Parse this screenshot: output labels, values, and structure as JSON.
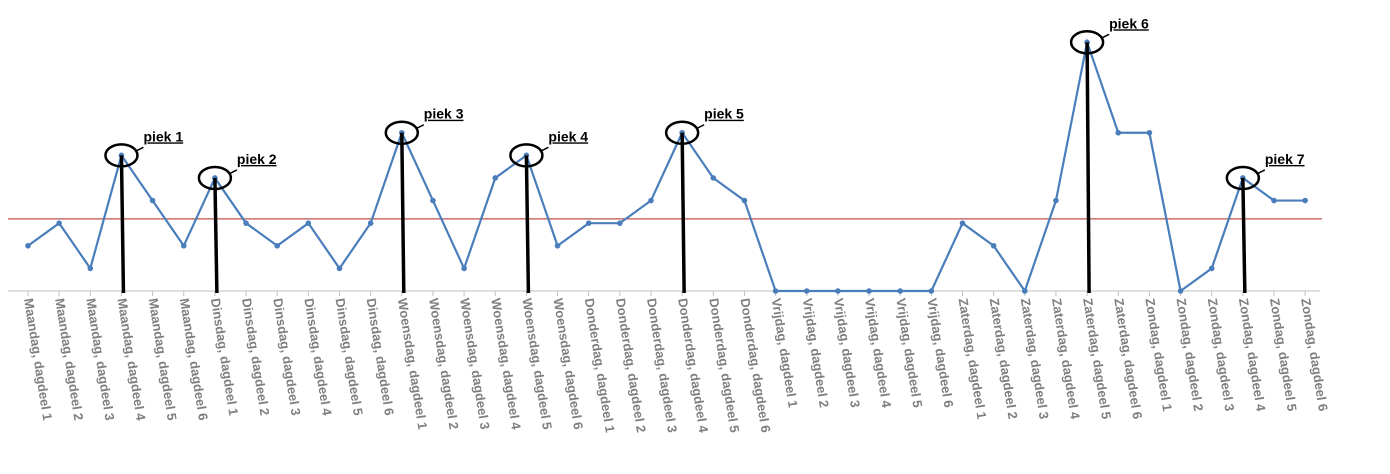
{
  "chart_data": {
    "type": "line",
    "categories": [
      "Maandag, dagdeel 1",
      "Maandag, dagdeel 2",
      "Maandag, dagdeel 3",
      "Maandag, dagdeel 4",
      "Maandag, dagdeel 5",
      "Maandag, dagdeel 6",
      "Dinsdag, dagdeel 1",
      "Dinsdag, dagdeel 2",
      "Dinsdag, dagdeel 3",
      "Dinsdag, dagdeel 4",
      "Dinsdag, dagdeel 5",
      "Dinsdag, dagdeel 6",
      "Woensdag, dagdeel 1",
      "Woensdag, dagdeel 2",
      "Woensdag, dagdeel 3",
      "Woensdag, dagdeel 4",
      "Woensdag, dagdeel 5",
      "Woensdag, dagdeel 6",
      "Donderdag, dagdeel 1",
      "Donderdag, dagdeel 2",
      "Donderdag, dagdeel 3",
      "Donderdag, dagdeel 4",
      "Donderdag, dagdeel 5",
      "Donderdag, dagdeel 6",
      "Vrijdag, dagdeel 1",
      "Vrijdag, dagdeel 2",
      "Vrijdag, dagdeel 3",
      "Vrijdag, dagdeel 4",
      "Vrijdag, dagdeel 5",
      "Vrijdag, dagdeel 6",
      "Zaterdag, dagdeel 1",
      "Zaterdag, dagdeel 2",
      "Zaterdag, dagdeel 3",
      "Zaterdag, dagdeel 4",
      "Zaterdag, dagdeel 5",
      "Zaterdag, dagdeel 6",
      "Zondag, dagdeel 1",
      "Zondag, dagdeel 2",
      "Zondag, dagdeel 3",
      "Zondag, dagdeel 4",
      "Zondag, dagdeel 5",
      "Zondag, dagdeel 6"
    ],
    "values": [
      2,
      3,
      1,
      6,
      4,
      2,
      5,
      3,
      2,
      3,
      1,
      3,
      7,
      4,
      1,
      5,
      6,
      2,
      3,
      3,
      4,
      7,
      5,
      4,
      0,
      0,
      0,
      0,
      0,
      0,
      3,
      2,
      0,
      4,
      11,
      7,
      7,
      0,
      1,
      5,
      4,
      4
    ],
    "color": "#4a7ebb",
    "ylim": [
      0,
      11.5
    ],
    "reference_line": {
      "value": 3.19,
      "color": "#c0504d"
    },
    "annotations": [
      {
        "text": "piek 1",
        "index": 3
      },
      {
        "text": "piek 2",
        "index": 6
      },
      {
        "text": "piek 3",
        "index": 12
      },
      {
        "text": "piek 4",
        "index": 16
      },
      {
        "text": "piek 5",
        "index": 21
      },
      {
        "text": "piek 6",
        "index": 34
      },
      {
        "text": "piek 7",
        "index": 39
      }
    ]
  }
}
